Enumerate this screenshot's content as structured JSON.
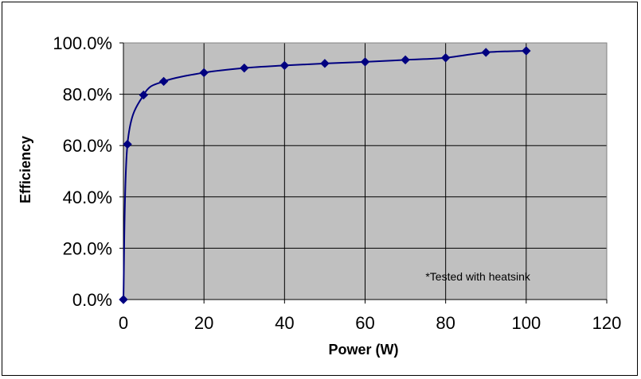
{
  "chart_data": {
    "type": "line",
    "title": "",
    "xlabel": "Power (W)",
    "ylabel": "Efficiency",
    "xlim": [
      0,
      120
    ],
    "ylim": [
      0,
      1
    ],
    "xticks": [
      0,
      20,
      40,
      60,
      80,
      100,
      120
    ],
    "xtick_labels": [
      "0",
      "20",
      "40",
      "60",
      "80",
      "100",
      "120"
    ],
    "yticks": [
      0,
      0.2,
      0.4,
      0.6,
      0.8,
      1.0
    ],
    "ytick_labels": [
      "0.0%",
      "20.0%",
      "40.0%",
      "60.0%",
      "80.0%",
      "100.0%"
    ],
    "grid": true,
    "legend": "none",
    "plot_background": "#c0c0c0",
    "series": [
      {
        "color": "#000080",
        "marker": "diamond",
        "smooth": true,
        "x": [
          0,
          1,
          5,
          10,
          20,
          30,
          40,
          50,
          60,
          70,
          80,
          90,
          100
        ],
        "y": [
          0.0,
          0.605,
          0.797,
          0.85,
          0.884,
          0.902,
          0.912,
          0.92,
          0.926,
          0.934,
          0.942,
          0.963,
          0.969
        ]
      }
    ],
    "annotations": [
      {
        "text": "*Tested with heatsink",
        "x": 88,
        "y": 0.075
      }
    ]
  }
}
